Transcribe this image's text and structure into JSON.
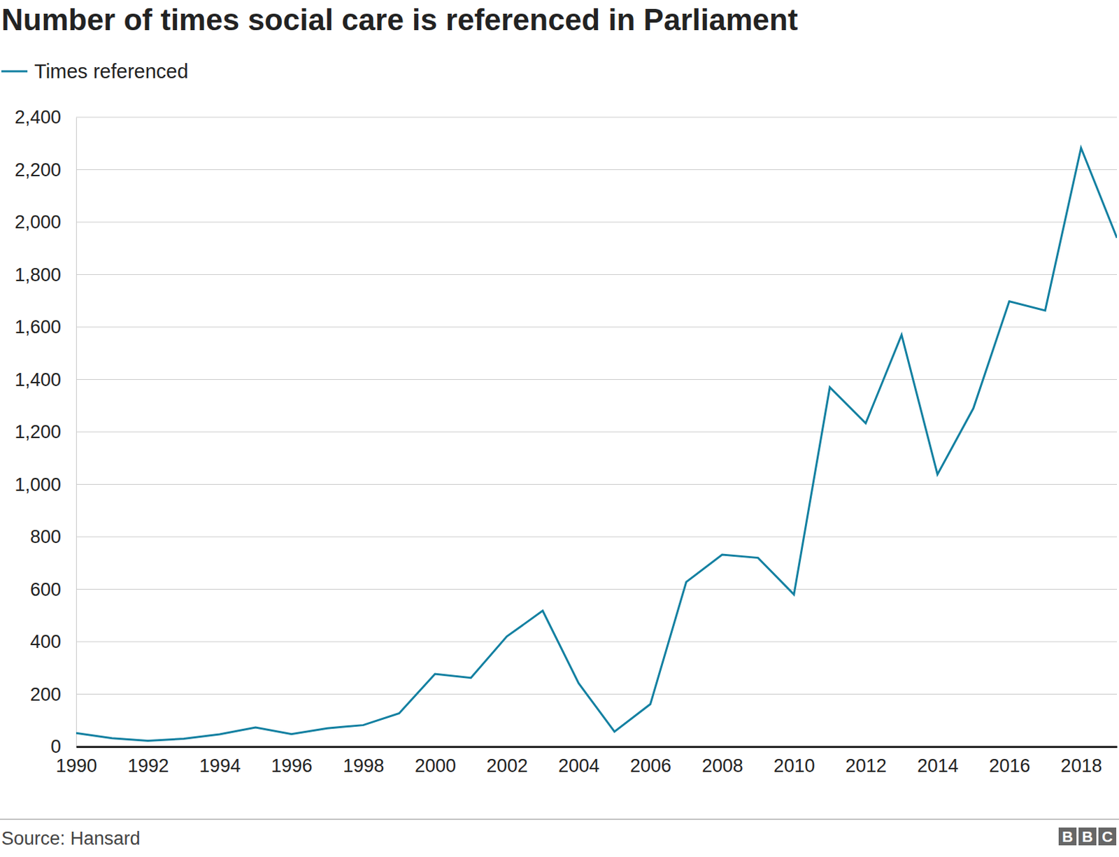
{
  "chart_data": {
    "type": "line",
    "title": "Number of times social care is referenced in Parliament",
    "x": [
      1990,
      1991,
      1992,
      1993,
      1994,
      1995,
      1996,
      1997,
      1998,
      1999,
      2000,
      2001,
      2002,
      2003,
      2004,
      2005,
      2006,
      2007,
      2008,
      2009,
      2010,
      2011,
      2012,
      2013,
      2014,
      2015,
      2016,
      2017,
      2018,
      2019
    ],
    "series": [
      {
        "name": "Times referenced",
        "color": "#1380a1",
        "values": [
          52,
          32,
          22,
          30,
          47,
          73,
          48,
          70,
          82,
          127,
          277,
          262,
          420,
          518,
          242,
          57,
          162,
          628,
          732,
          720,
          580,
          1370,
          1233,
          1570,
          1038,
          1290,
          1698,
          1663,
          2283,
          1940
        ]
      }
    ],
    "xlim": [
      1990,
      2019
    ],
    "xticks": [
      1990,
      1992,
      1994,
      1996,
      1998,
      2000,
      2002,
      2004,
      2006,
      2008,
      2010,
      2012,
      2014,
      2016,
      2018
    ],
    "ylim": [
      0,
      2400
    ],
    "yticks": [
      0,
      200,
      400,
      600,
      800,
      {
        "value": 1000,
        "label": "1,000"
      },
      {
        "value": 1200,
        "label": "1,200"
      },
      {
        "value": 1400,
        "label": "1,400"
      },
      {
        "value": 1600,
        "label": "1,600"
      },
      {
        "value": 1800,
        "label": "1,800"
      },
      {
        "value": 2000,
        "label": "2,000"
      },
      {
        "value": 2200,
        "label": "2,200"
      },
      {
        "value": 2400,
        "label": "2,400"
      }
    ],
    "grid": true,
    "legend": "top-left",
    "source": "Source: Hansard",
    "logo": "BBC"
  }
}
